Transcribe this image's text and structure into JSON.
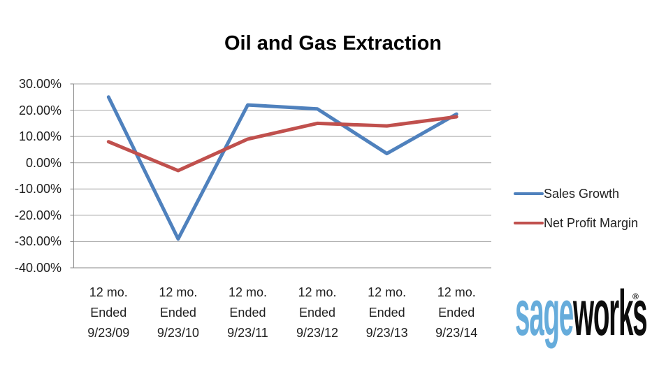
{
  "page": {
    "background": "#ffffff"
  },
  "chart_data": {
    "type": "line",
    "title": "Oil and Gas Extraction",
    "categories": [
      "12 mo. Ended 9/23/09",
      "12 mo. Ended 9/23/10",
      "12 mo. Ended 9/23/11",
      "12 mo. Ended 9/23/12",
      "12 mo. Ended 9/23/13",
      "12 mo. Ended 9/23/14"
    ],
    "category_lines": [
      [
        "12 mo.",
        "Ended",
        "9/23/09"
      ],
      [
        "12 mo.",
        "Ended",
        "9/23/10"
      ],
      [
        "12 mo.",
        "Ended",
        "9/23/11"
      ],
      [
        "12 mo.",
        "Ended",
        "9/23/12"
      ],
      [
        "12 mo.",
        "Ended",
        "9/23/13"
      ],
      [
        "12 mo.",
        "Ended",
        "9/23/14"
      ]
    ],
    "series": [
      {
        "name": "Sales Growth",
        "color": "#4F81BD",
        "values": [
          25.0,
          -29.0,
          22.0,
          20.5,
          3.5,
          18.5
        ]
      },
      {
        "name": "Net Profit Margin",
        "color": "#C0504D",
        "values": [
          8.0,
          -3.0,
          9.0,
          15.0,
          14.0,
          17.5
        ]
      }
    ],
    "units": "percent",
    "ylim": [
      -40,
      30
    ],
    "ytick_values": [
      30,
      20,
      10,
      0,
      -10,
      -20,
      -30,
      -40
    ],
    "ytick_labels": [
      "30.00%",
      "20.00%",
      "10.00%",
      "0.00%",
      "-10.00%",
      "-20.00%",
      "-30.00%",
      "-40.00%"
    ],
    "grid": true,
    "gridline_color": "#A6A6A6",
    "axis_color": "#898989",
    "legend_position": "right"
  },
  "logo": {
    "part1": "sage",
    "part2": "works",
    "registered": "®",
    "part1_color": "#66ACDB",
    "part2_color": "#0d0d0d"
  }
}
